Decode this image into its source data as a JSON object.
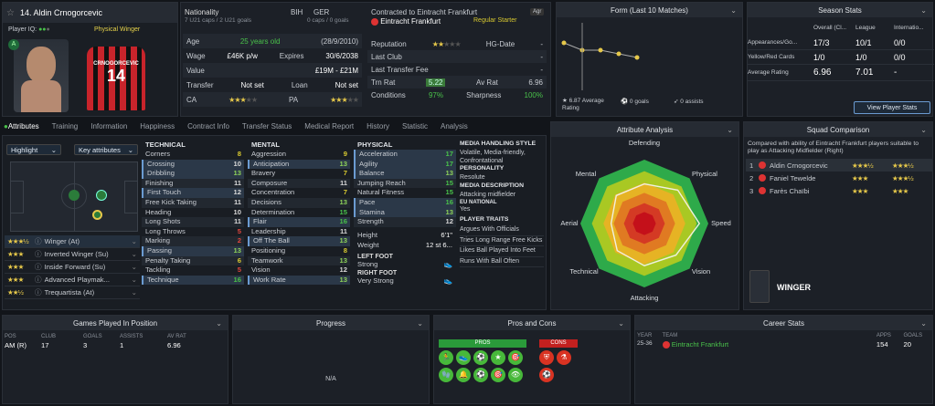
{
  "player": {
    "number_name": "14. Aldin Crnogorcevic",
    "iq_label": "Player IQ:",
    "position": "Physical Winger",
    "shirt_name": "CRNOGORCEVIC",
    "shirt_number": "14"
  },
  "info": {
    "nationality_label": "Nationality",
    "nat1": "BIH",
    "nat2": "GER",
    "caps1": "7 U21 caps / 2 U21 goals",
    "caps2": "0 caps / 0 goals",
    "contract": "Contracted to Eintracht Frankfurt",
    "club": "Eintracht Frankfurt",
    "status": "Regular Starter",
    "badge": "Agr"
  },
  "details": {
    "age_label": "Age",
    "age": "25 years old",
    "dob": "(28/9/2010)",
    "wage_label": "Wage",
    "wage": "£46K p/w",
    "expires_label": "Expires",
    "expires": "30/6/2038",
    "value_label": "Value",
    "value": "£19M - £21M",
    "transfer_label": "Transfer",
    "transfer": "Not set",
    "loan_label": "Loan",
    "loan": "Not set",
    "ca_label": "CA",
    "pa_label": "PA"
  },
  "extra": {
    "reputation": "Reputation",
    "hg": "HG-Date",
    "hg_val": "-",
    "last_club": "Last Club",
    "last_club_val": "-",
    "ltf": "Last Transfer Fee",
    "ltf_val": "-",
    "trn": "Trn Rat",
    "trn_val": "5.22",
    "av": "Av Rat",
    "av_val": "6.96",
    "cond": "Conditions",
    "cond_val": "97%",
    "sharp": "Sharpness",
    "sharp_val": "100%"
  },
  "form": {
    "title": "Form (Last 10 Matches)",
    "avg": "6.87 Average Rating",
    "goals": "0 goals",
    "assists": "0 assists",
    "values": [
      7.2,
      7.0,
      7.0,
      6.9,
      6.8
    ]
  },
  "season": {
    "title": "Season Stats",
    "cols": [
      "Overall (Cl...",
      "League",
      "Internatio..."
    ],
    "rows": [
      {
        "l": "Appearances/Go...",
        "a": "17/3",
        "b": "10/1",
        "c": "0/0"
      },
      {
        "l": "Yellow/Red Cards",
        "a": "1/0",
        "b": "1/0",
        "c": "0/0"
      },
      {
        "l": "Average Rating",
        "a": "6.96",
        "b": "7.01",
        "c": "-"
      }
    ],
    "button": "View Player Stats"
  },
  "tabs": [
    "Attributes",
    "Training",
    "Information",
    "Happiness",
    "Contract Info",
    "Transfer Status",
    "Medical Report",
    "History",
    "Statistic",
    "Analysis"
  ],
  "left": {
    "highlight": "Highlight",
    "key": "Key attributes",
    "roles": [
      {
        "n": "Winger (At)",
        "s": "★★★½"
      },
      {
        "n": "Inverted Winger (Su)",
        "s": "★★★"
      },
      {
        "n": "Inside Forward (Su)",
        "s": "★★★"
      },
      {
        "n": "Advanced Playmak...",
        "s": "★★★"
      },
      {
        "n": "Trequartista (At)",
        "s": "★★½"
      }
    ]
  },
  "technical": {
    "title": "TECHNICAL",
    "items": [
      [
        "Corners",
        "8"
      ],
      [
        "Crossing",
        "10"
      ],
      [
        "Dribbling",
        "13"
      ],
      [
        "Finishing",
        "11"
      ],
      [
        "First Touch",
        "12"
      ],
      [
        "Free Kick Taking",
        "11"
      ],
      [
        "Heading",
        "10"
      ],
      [
        "Long Shots",
        "11"
      ],
      [
        "Long Throws",
        "5"
      ],
      [
        "Marking",
        "2"
      ],
      [
        "Passing",
        "13"
      ],
      [
        "Penalty Taking",
        "6"
      ],
      [
        "Tackling",
        "5"
      ],
      [
        "Technique",
        "16"
      ]
    ]
  },
  "mental": {
    "title": "MENTAL",
    "items": [
      [
        "Aggression",
        "9"
      ],
      [
        "Anticipation",
        "13"
      ],
      [
        "Bravery",
        "7"
      ],
      [
        "Composure",
        "11"
      ],
      [
        "Concentration",
        "7"
      ],
      [
        "Decisions",
        "13"
      ],
      [
        "Determination",
        "15"
      ],
      [
        "Flair",
        "16"
      ],
      [
        "Leadership",
        "11"
      ],
      [
        "Off The Ball",
        "13"
      ],
      [
        "Positioning",
        "8"
      ],
      [
        "Teamwork",
        "13"
      ],
      [
        "Vision",
        "12"
      ],
      [
        "Work Rate",
        "13"
      ]
    ]
  },
  "physical": {
    "title": "PHYSICAL",
    "items": [
      [
        "Acceleration",
        "17"
      ],
      [
        "Agility",
        "17"
      ],
      [
        "Balance",
        "13"
      ],
      [
        "Jumping Reach",
        "15"
      ],
      [
        "Natural Fitness",
        "15"
      ],
      [
        "Pace",
        "16"
      ],
      [
        "Stamina",
        "13"
      ],
      [
        "Strength",
        "12"
      ]
    ],
    "height_l": "Height",
    "height": "6'1\"",
    "weight_l": "Weight",
    "weight": "12 st 6...",
    "lf_l": "LEFT FOOT",
    "lf": "Strong",
    "rf_l": "RIGHT FOOT",
    "rf": "Very Strong"
  },
  "media": {
    "style_t": "MEDIA HANDLING STYLE",
    "style": "Volatile, Media-friendly, Confrontational",
    "pers_t": "PERSONALITY",
    "pers": "Resolute",
    "desc_t": "MEDIA DESCRIPTION",
    "desc": "Attacking midfielder",
    "eu_t": "EU NATIONAL",
    "eu": "Yes",
    "traits_t": "PLAYER TRAITS",
    "traits": [
      "Argues With Officials",
      "Tries Long Range Free Kicks",
      "Likes Ball Played Into Feet",
      "Runs With Ball Often"
    ]
  },
  "analysis": {
    "title": "Attribute Analysis",
    "labels": [
      "Defending",
      "Physical",
      "Speed",
      "Vision",
      "Attacking",
      "Technical",
      "Aerial",
      "Mental"
    ]
  },
  "squad": {
    "title": "Squad Comparison",
    "desc": "Compared with ability of Eintracht Frankfurt players suitable to play as Attacking Midfielder (Right)",
    "rows": [
      {
        "n": "1",
        "p": "Aldin Crnogorcevic",
        "a": "★★★½",
        "b": "★★★½"
      },
      {
        "n": "2",
        "p": "Faniel Tewelde",
        "a": "★★★",
        "b": "★★★½"
      },
      {
        "n": "3",
        "p": "Farès Chaïbi",
        "a": "★★★",
        "b": "★★★"
      }
    ],
    "role": "WINGER"
  },
  "games": {
    "title": "Games Played In Position",
    "cols": [
      "POS",
      "CLUB",
      "GOALS",
      "ASSISTS",
      "AV RAT"
    ],
    "row": [
      "AM (R)",
      "17",
      "3",
      "1",
      "6.96"
    ]
  },
  "progress": {
    "title": "Progress",
    "na": "N/A"
  },
  "pros": {
    "title": "Pros and Cons",
    "pros": "PROS",
    "cons": "CONS"
  },
  "career": {
    "title": "Career Stats",
    "cols": [
      "YEAR",
      "TEAM",
      "APPS",
      "GOALS"
    ],
    "row": [
      "25-36",
      "Eintracht Frankfurt",
      "154",
      "20"
    ]
  }
}
